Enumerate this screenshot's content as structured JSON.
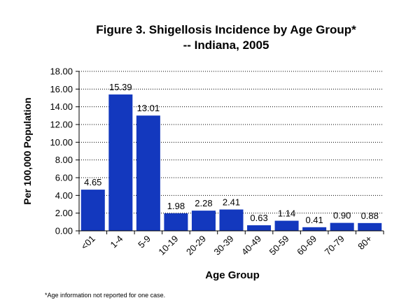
{
  "chart_data": {
    "type": "bar",
    "title_line1": "Figure 3. Shigellosis Incidence by Age Group*",
    "title_line2": "-- Indiana, 2005",
    "xlabel": "Age Group",
    "ylabel": "Per 100,000 Population",
    "categories": [
      "<01",
      "1-4",
      "5-9",
      "10-19",
      "20-29",
      "30-39",
      "40-49",
      "50-59",
      "60-69",
      "70-79",
      "80+"
    ],
    "values": [
      4.65,
      15.39,
      13.01,
      1.98,
      2.28,
      2.41,
      0.63,
      1.14,
      0.41,
      0.9,
      0.88
    ],
    "value_labels": [
      "4.65",
      "15.39",
      "13.01",
      "1.98",
      "2.28",
      "2.41",
      "0.63",
      "1.14",
      "0.41",
      "0.90",
      "0.88"
    ],
    "ylim": [
      0,
      18
    ],
    "yticks": [
      "0.00",
      "2.00",
      "4.00",
      "6.00",
      "8.00",
      "10.00",
      "12.00",
      "14.00",
      "16.00",
      "18.00"
    ],
    "grid": true,
    "bar_color": "#1338BE",
    "footnote": "*Age information not reported for one case."
  }
}
